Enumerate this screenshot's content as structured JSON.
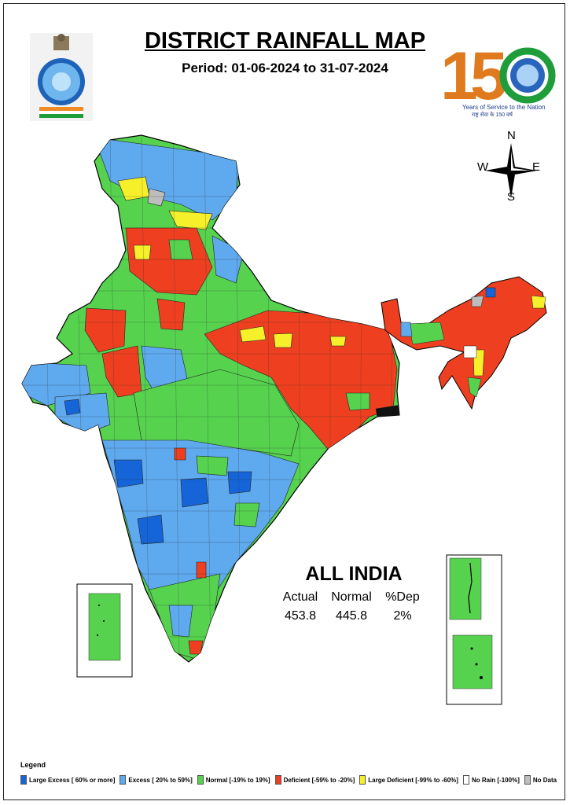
{
  "header": {
    "title": "DISTRICT RAINFALL MAP",
    "period": "Period: 01-06-2024 to 31-07-2024"
  },
  "logo": {
    "digits": "150",
    "years_text": "Years of Service to the Nation",
    "hindi_text": "राष्ट्र सेवा के 150 वर्ष"
  },
  "compass": {
    "n": "N",
    "s": "S",
    "e": "E",
    "w": "W"
  },
  "all_india": {
    "title": "ALL INDIA",
    "headers": [
      "Actual",
      "Normal",
      "%Dep"
    ],
    "values": [
      "453.8",
      "445.8",
      "2%"
    ]
  },
  "legend": {
    "title": "Legend",
    "items": [
      {
        "label": "Large Excess [ 60% or more]",
        "color": "#1565d8"
      },
      {
        "label": "Excess [ 20% to 59%]",
        "color": "#5fa9ee"
      },
      {
        "label": "Normal [-19% to 19%]",
        "color": "#56d24f"
      },
      {
        "label": "Deficient [-59% to -20%]",
        "color": "#ee4020"
      },
      {
        "label": "Large Deficient [-99% to -60%]",
        "color": "#f6f02a"
      },
      {
        "label": "No Rain [-100%]",
        "color": "#ffffff"
      },
      {
        "label": "No Data",
        "color": "#bdbdbd"
      }
    ]
  }
}
